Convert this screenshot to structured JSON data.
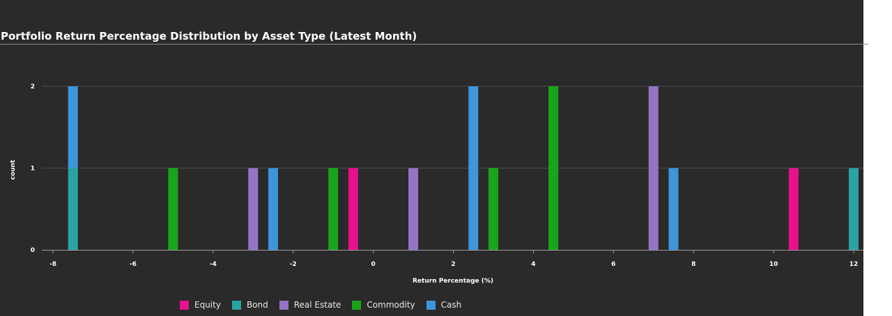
{
  "chart_data": {
    "type": "bar",
    "title": "Portfolio Return Percentage Distribution by Asset Type (Latest Month)",
    "xlabel": "Return Percentage (%)",
    "ylabel": "count",
    "xlim": [
      -8.3,
      12.3
    ],
    "ylim": [
      0,
      2
    ],
    "x_ticks": [
      -8,
      -6,
      -4,
      -2,
      0,
      2,
      4,
      6,
      8,
      10,
      12
    ],
    "y_ticks": [
      0,
      1,
      2
    ],
    "grid": true,
    "legend_position": "bottom",
    "bin_width": 0.25,
    "stacked": true,
    "series": [
      {
        "name": "Equity",
        "color": "#e6118c",
        "points": [
          {
            "x": -0.5,
            "y": 1
          },
          {
            "x": 10.5,
            "y": 1
          }
        ]
      },
      {
        "name": "Bond",
        "color": "#2ba3a3",
        "points": [
          {
            "x": -7.5,
            "y": 1
          },
          {
            "x": 12.0,
            "y": 1
          }
        ]
      },
      {
        "name": "Real Estate",
        "color": "#9375c4",
        "points": [
          {
            "x": -3.0,
            "y": 1
          },
          {
            "x": 1.0,
            "y": 1
          },
          {
            "x": 7.0,
            "y": 2
          }
        ]
      },
      {
        "name": "Commodity",
        "color": "#19a519",
        "points": [
          {
            "x": -5.0,
            "y": 1
          },
          {
            "x": -1.0,
            "y": 1
          },
          {
            "x": 3.0,
            "y": 1
          },
          {
            "x": 4.5,
            "y": 2
          }
        ]
      },
      {
        "name": "Cash",
        "color": "#3d95dc",
        "points": [
          {
            "x": -7.5,
            "y": 1
          },
          {
            "x": -2.5,
            "y": 1
          },
          {
            "x": 2.5,
            "y": 2
          },
          {
            "x": 7.5,
            "y": 1
          }
        ]
      }
    ]
  }
}
